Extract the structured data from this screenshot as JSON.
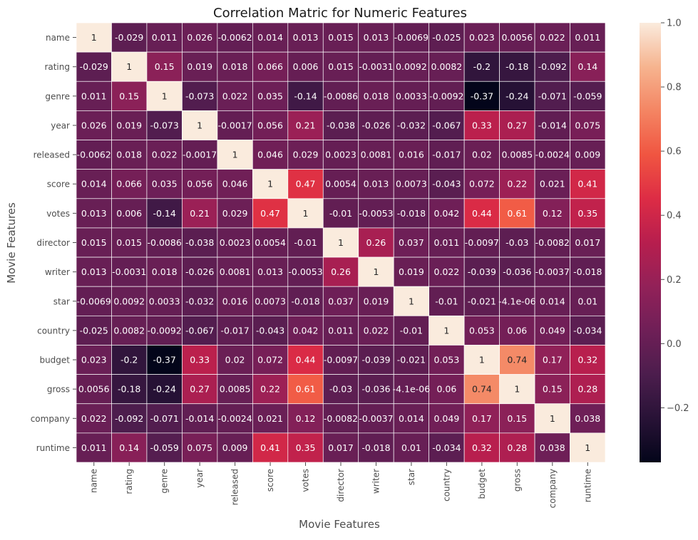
{
  "chart_data": {
    "type": "heatmap",
    "title": "Correlation Matric for Numeric Features",
    "xlabel": "Movie Features",
    "ylabel": "Movie Features",
    "labels": [
      "name",
      "rating",
      "genre",
      "year",
      "released",
      "score",
      "votes",
      "director",
      "writer",
      "star",
      "country",
      "budget",
      "gross",
      "company",
      "runtime"
    ],
    "values": [
      [
        1,
        -0.029,
        0.011,
        0.026,
        -0.0062,
        0.014,
        0.013,
        0.015,
        0.013,
        -0.0069,
        -0.025,
        0.023,
        0.0056,
        0.022,
        0.011
      ],
      [
        -0.029,
        1,
        0.15,
        0.019,
        0.018,
        0.066,
        0.006,
        0.015,
        -0.0031,
        0.0092,
        0.0082,
        -0.2,
        -0.18,
        -0.092,
        0.14
      ],
      [
        0.011,
        0.15,
        1,
        -0.073,
        0.022,
        0.035,
        -0.14,
        -0.0086,
        0.018,
        0.0033,
        -0.0092,
        -0.37,
        -0.24,
        -0.071,
        -0.059
      ],
      [
        0.026,
        0.019,
        -0.073,
        1,
        -0.0017,
        0.056,
        0.21,
        -0.038,
        -0.026,
        -0.032,
        -0.067,
        0.33,
        0.27,
        -0.014,
        0.075
      ],
      [
        -0.0062,
        0.018,
        0.022,
        -0.0017,
        1,
        0.046,
        0.029,
        0.0023,
        0.0081,
        0.016,
        -0.017,
        0.02,
        0.0085,
        -0.0024,
        0.009
      ],
      [
        0.014,
        0.066,
        0.035,
        0.056,
        0.046,
        1,
        0.47,
        0.0054,
        0.013,
        0.0073,
        -0.043,
        0.072,
        0.22,
        0.021,
        0.41
      ],
      [
        0.013,
        0.006,
        -0.14,
        0.21,
        0.029,
        0.47,
        1,
        -0.01,
        -0.0053,
        -0.018,
        0.042,
        0.44,
        0.61,
        0.12,
        0.35
      ],
      [
        0.015,
        0.015,
        -0.0086,
        -0.038,
        0.0023,
        0.0054,
        -0.01,
        1,
        0.26,
        0.037,
        0.011,
        -0.0097,
        -0.03,
        -0.0082,
        0.017
      ],
      [
        0.013,
        -0.0031,
        0.018,
        -0.026,
        0.0081,
        0.013,
        -0.0053,
        0.26,
        1,
        0.019,
        0.022,
        -0.039,
        -0.036,
        -0.0037,
        -0.018
      ],
      [
        -0.0069,
        0.0092,
        0.0033,
        -0.032,
        0.016,
        0.0073,
        -0.018,
        0.037,
        0.019,
        1,
        -0.01,
        -0.021,
        -4.1e-06,
        0.014,
        0.01
      ],
      [
        -0.025,
        0.0082,
        -0.0092,
        -0.067,
        -0.017,
        -0.043,
        0.042,
        0.011,
        0.022,
        -0.01,
        1,
        0.053,
        0.06,
        0.049,
        -0.034
      ],
      [
        0.023,
        -0.2,
        -0.37,
        0.33,
        0.02,
        0.072,
        0.44,
        -0.0097,
        -0.039,
        -0.021,
        0.053,
        1,
        0.74,
        0.17,
        0.32
      ],
      [
        0.0056,
        -0.18,
        -0.24,
        0.27,
        0.0085,
        0.22,
        0.61,
        -0.03,
        -0.036,
        -4.1e-06,
        0.06,
        0.74,
        1,
        0.15,
        0.28
      ],
      [
        0.022,
        -0.092,
        -0.071,
        -0.014,
        -0.0024,
        0.021,
        0.12,
        -0.0082,
        -0.0037,
        0.014,
        0.049,
        0.17,
        0.15,
        1,
        0.038
      ],
      [
        0.011,
        0.14,
        -0.059,
        0.075,
        0.009,
        0.41,
        0.35,
        0.017,
        -0.018,
        0.01,
        -0.034,
        0.32,
        0.28,
        0.038,
        1
      ]
    ],
    "vmin": -0.37,
    "vmax": 1,
    "colormap": "rocket",
    "colorbar_ticks": [
      "1.0",
      "0.8",
      "0.6",
      "0.4",
      "0.2",
      "0.0",
      "−0.2"
    ],
    "colorbar_tick_values": [
      1.0,
      0.8,
      0.6,
      0.4,
      0.2,
      0.0,
      -0.2
    ],
    "grid_lines": "white"
  }
}
